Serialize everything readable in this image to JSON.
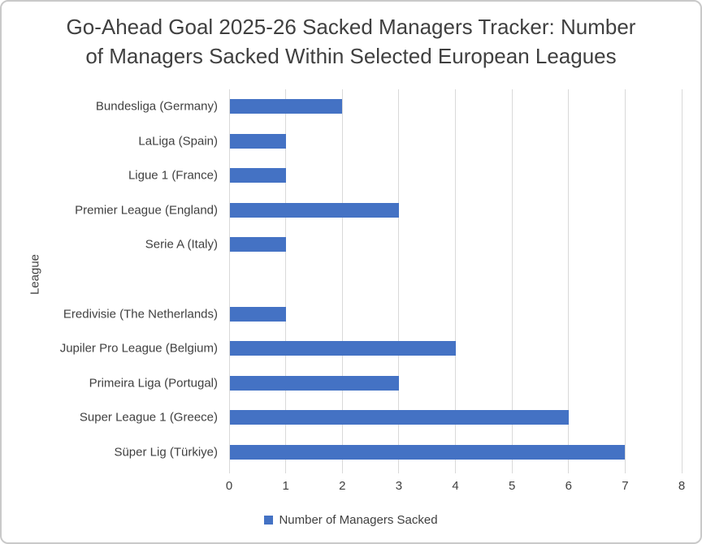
{
  "chart_data": {
    "type": "bar",
    "orientation": "horizontal",
    "title": "Go-Ahead Goal 2025-26 Sacked Managers Tracker: Number of Managers Sacked Within Selected European Leagues",
    "title_lines": [
      "Go-Ahead Goal 2025-26 Sacked Managers Tracker: Number",
      "of Managers Sacked Within Selected European Leagues"
    ],
    "categories": [
      "Bundesliga (Germany)",
      "LaLiga (Spain)",
      "Ligue 1 (France)",
      "Premier League (England)",
      "Serie A (Italy)",
      "",
      "Eredivisie (The Netherlands)",
      "Jupiler Pro League (Belgium)",
      "Primeira Liga (Portugal)",
      "Super League 1 (Greece)",
      "Süper Lig (Türkiye)"
    ],
    "values": [
      2,
      1,
      1,
      3,
      1,
      0,
      1,
      4,
      3,
      6,
      7
    ],
    "xlabel": "",
    "ylabel": "League",
    "xlim": [
      0,
      8
    ],
    "xticks": [
      0,
      1,
      2,
      3,
      4,
      5,
      6,
      7,
      8
    ],
    "grid": "vertical",
    "legend": {
      "position": "bottom",
      "entries": [
        {
          "label": "Number of Managers Sacked",
          "color": "#4472C4"
        }
      ]
    },
    "colors": {
      "bar": "#4472C4",
      "gridline": "#D9D9D9",
      "text": "#404040",
      "border": "#C9C9C9"
    }
  }
}
